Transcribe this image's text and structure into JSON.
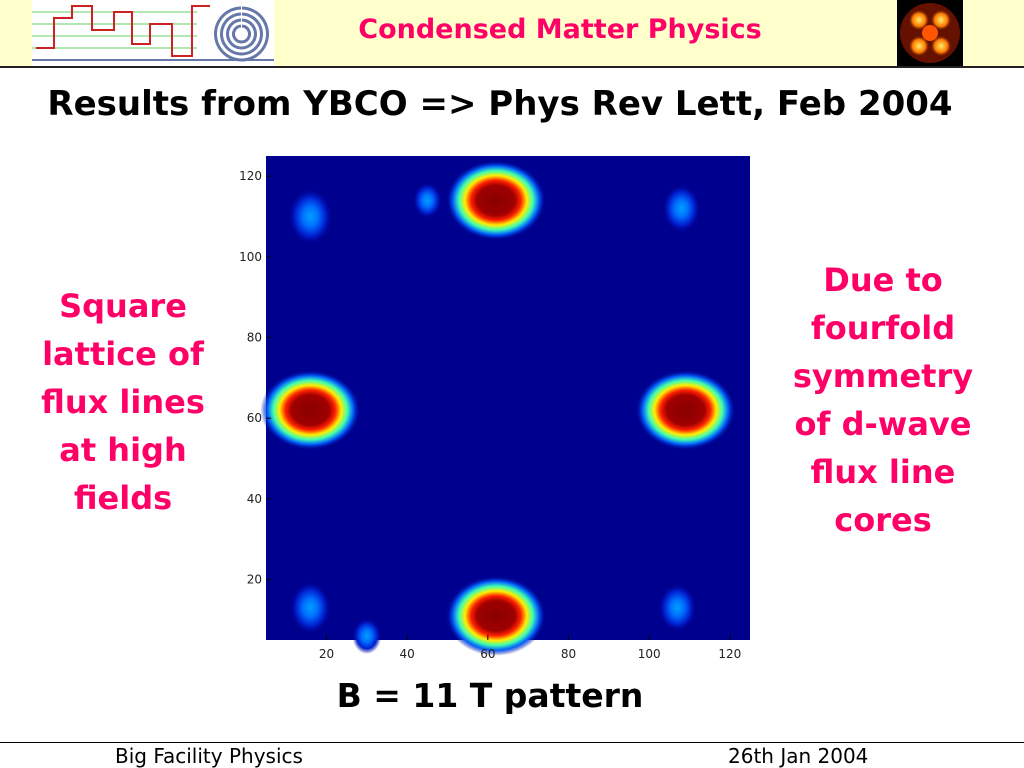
{
  "header": {
    "title": "Condensed Matter Physics"
  },
  "slide": {
    "title": "Results from YBCO => Phys Rev Lett, Feb 2004"
  },
  "left_text": {
    "lines": [
      "Square",
      "lattice of",
      "flux lines",
      "at high",
      "fields"
    ]
  },
  "right_text": {
    "lines": [
      "Due to",
      "fourfold",
      "symmetry",
      "of d-wave",
      "flux line",
      "cores"
    ]
  },
  "caption": "B = 11 T pattern",
  "footer": {
    "left": "Big Facility Physics",
    "right": "26th Jan 2004"
  },
  "chart_data": {
    "type": "heatmap",
    "xlim": [
      5,
      125
    ],
    "ylim": [
      5,
      125
    ],
    "xticks": [
      "20",
      "40",
      "60",
      "80",
      "100",
      "120"
    ],
    "yticks": [
      "20",
      "40",
      "60",
      "80",
      "100",
      "120"
    ],
    "colormap": "jet",
    "background_color": "#00008f",
    "peaks": [
      {
        "x": 62,
        "y": 114,
        "level": 1.0
      },
      {
        "x": 16,
        "y": 62,
        "level": 1.0
      },
      {
        "x": 109,
        "y": 62,
        "level": 1.0
      },
      {
        "x": 62,
        "y": 11,
        "level": 1.0
      },
      {
        "x": 16,
        "y": 110,
        "level": 0.4
      },
      {
        "x": 108,
        "y": 112,
        "level": 0.3
      },
      {
        "x": 16,
        "y": 13,
        "level": 0.35
      },
      {
        "x": 107,
        "y": 13,
        "level": 0.3
      },
      {
        "x": 45,
        "y": 114,
        "level": 0.15
      },
      {
        "x": 30,
        "y": 6,
        "level": 0.15
      }
    ]
  }
}
